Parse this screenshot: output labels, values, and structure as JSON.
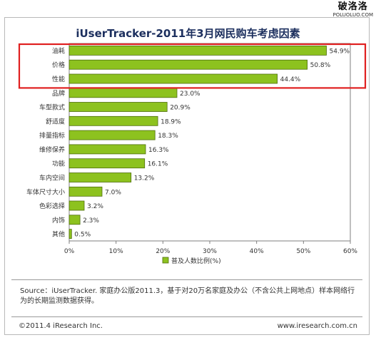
{
  "watermark": {
    "main": "破洛洛",
    "sub": "POLUOLUO.COM"
  },
  "chart_data": {
    "type": "bar",
    "orientation": "horizontal",
    "title": "iUserTracker-2011年3月网民购车考虑因素",
    "categories": [
      "油耗",
      "价格",
      "性能",
      "品牌",
      "车型款式",
      "舒适度",
      "排量指标",
      "维修保养",
      "功能",
      "车内空间",
      "车体尺寸大小",
      "色彩选择",
      "内饰",
      "其他"
    ],
    "series": [
      {
        "name": "普及人数比例(%)",
        "values": [
          54.9,
          50.8,
          44.4,
          23.0,
          20.9,
          18.9,
          18.3,
          16.3,
          16.1,
          13.2,
          7.0,
          3.2,
          2.3,
          0.5
        ]
      }
    ],
    "value_labels": [
      "54.9%",
      "50.8%",
      "44.4%",
      "23.0%",
      "20.9%",
      "18.9%",
      "18.3%",
      "16.3%",
      "16.1%",
      "13.2%",
      "7.0%",
      "3.2%",
      "2.3%",
      "0.5%"
    ],
    "xlim": [
      0,
      60
    ],
    "xticks": [
      "0%",
      "10%",
      "20%",
      "30%",
      "40%",
      "50%",
      "60%"
    ],
    "grid": false,
    "legend_position": "bottom",
    "highlight_top_n": 3,
    "colors": {
      "bar": "#8dc21f",
      "bar_border": "#4e6d0c",
      "highlight": "#e02020",
      "title": "#1c2f5e"
    }
  },
  "source_text": "Source：iUserTracker. 家庭办公版2011.3，基于对20万名家庭及办公（不含公共上网地点）样本网络行为的长期监测数据获得。",
  "footer": {
    "copyright": "©2011.4 iResearch Inc.",
    "website": "www.iresearch.com.cn"
  }
}
